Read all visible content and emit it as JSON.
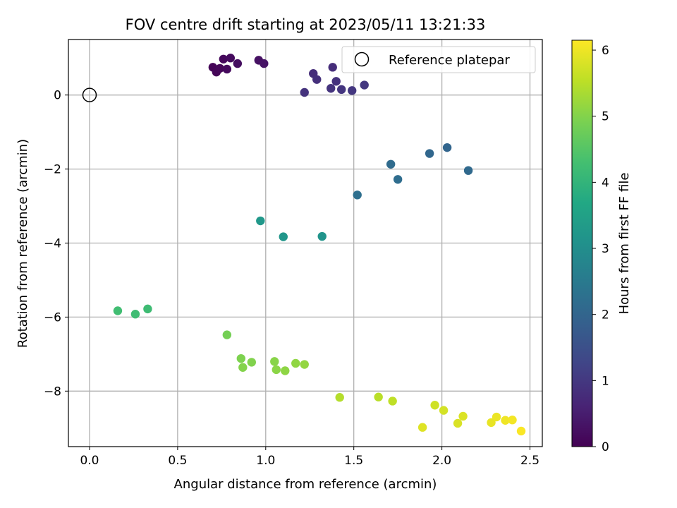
{
  "chart_data": {
    "type": "scatter",
    "title": "FOV centre drift starting at 2023/05/11 13:21:33",
    "xlabel": "Angular distance from reference (arcmin)",
    "ylabel": "Rotation from reference (arcmin)",
    "xlim": [
      -0.12,
      2.57
    ],
    "ylim": [
      -9.5,
      1.5
    ],
    "xticks": [
      0.0,
      0.5,
      1.0,
      1.5,
      2.0,
      2.5
    ],
    "xtick_labels": [
      "0.0",
      "0.5",
      "1.0",
      "1.5",
      "2.0",
      "2.5"
    ],
    "yticks": [
      -8,
      -6,
      -4,
      -2,
      0
    ],
    "ytick_labels": [
      "−8",
      "−6",
      "−4",
      "−2",
      "0"
    ],
    "grid": true,
    "legend": {
      "position": "top-right",
      "entries": [
        "Reference platepar"
      ]
    },
    "reference_point": {
      "x": 0.0,
      "y": 0.0
    },
    "colorbar": {
      "label": "Hours from first FF file",
      "colormap": "viridis",
      "range": [
        0,
        6.15
      ],
      "ticks": [
        0,
        1,
        2,
        3,
        4,
        5,
        6
      ],
      "tick_labels": [
        "0",
        "1",
        "2",
        "3",
        "4",
        "5",
        "6"
      ]
    },
    "points": [
      {
        "x": 0.7,
        "y": 0.75,
        "hours": 0.05
      },
      {
        "x": 0.72,
        "y": 0.62,
        "hours": 0.08
      },
      {
        "x": 0.74,
        "y": 0.72,
        "hours": 0.1
      },
      {
        "x": 0.76,
        "y": 0.97,
        "hours": 0.13
      },
      {
        "x": 0.78,
        "y": 0.7,
        "hours": 0.16
      },
      {
        "x": 0.8,
        "y": 1.0,
        "hours": 0.18
      },
      {
        "x": 0.84,
        "y": 0.85,
        "hours": 0.22
      },
      {
        "x": 0.96,
        "y": 0.94,
        "hours": 0.28
      },
      {
        "x": 0.99,
        "y": 0.85,
        "hours": 0.32
      },
      {
        "x": 1.22,
        "y": 0.07,
        "hours": 0.9
      },
      {
        "x": 1.27,
        "y": 0.58,
        "hours": 0.8
      },
      {
        "x": 1.29,
        "y": 0.42,
        "hours": 0.85
      },
      {
        "x": 1.37,
        "y": 0.18,
        "hours": 0.92
      },
      {
        "x": 1.38,
        "y": 0.75,
        "hours": 0.78
      },
      {
        "x": 1.4,
        "y": 0.37,
        "hours": 0.88
      },
      {
        "x": 1.43,
        "y": 0.15,
        "hours": 0.95
      },
      {
        "x": 1.49,
        "y": 0.12,
        "hours": 0.98
      },
      {
        "x": 1.56,
        "y": 0.27,
        "hours": 1.0
      },
      {
        "x": 1.52,
        "y": -2.7,
        "hours": 2.25
      },
      {
        "x": 1.71,
        "y": -1.87,
        "hours": 2.15
      },
      {
        "x": 1.75,
        "y": -2.28,
        "hours": 2.2
      },
      {
        "x": 1.93,
        "y": -1.58,
        "hours": 2.05
      },
      {
        "x": 2.03,
        "y": -1.42,
        "hours": 2.0
      },
      {
        "x": 2.15,
        "y": -2.04,
        "hours": 2.1
      },
      {
        "x": 0.97,
        "y": -3.4,
        "hours": 3.25
      },
      {
        "x": 1.1,
        "y": -3.83,
        "hours": 3.2
      },
      {
        "x": 1.32,
        "y": -3.82,
        "hours": 3.15
      },
      {
        "x": 0.16,
        "y": -5.83,
        "hours": 4.25
      },
      {
        "x": 0.26,
        "y": -5.92,
        "hours": 4.22
      },
      {
        "x": 0.33,
        "y": -5.78,
        "hours": 4.2
      },
      {
        "x": 0.78,
        "y": -6.48,
        "hours": 4.85
      },
      {
        "x": 0.86,
        "y": -7.12,
        "hours": 4.95
      },
      {
        "x": 0.87,
        "y": -7.36,
        "hours": 5.0
      },
      {
        "x": 0.92,
        "y": -7.22,
        "hours": 4.98
      },
      {
        "x": 1.05,
        "y": -7.2,
        "hours": 5.05
      },
      {
        "x": 1.06,
        "y": -7.42,
        "hours": 5.08
      },
      {
        "x": 1.11,
        "y": -7.45,
        "hours": 5.1
      },
      {
        "x": 1.17,
        "y": -7.25,
        "hours": 5.12
      },
      {
        "x": 1.22,
        "y": -7.28,
        "hours": 5.15
      },
      {
        "x": 1.42,
        "y": -8.17,
        "hours": 5.45
      },
      {
        "x": 1.64,
        "y": -8.16,
        "hours": 5.5
      },
      {
        "x": 1.72,
        "y": -8.27,
        "hours": 5.55
      },
      {
        "x": 1.89,
        "y": -8.98,
        "hours": 5.85
      },
      {
        "x": 1.96,
        "y": -8.38,
        "hours": 5.7
      },
      {
        "x": 2.01,
        "y": -8.52,
        "hours": 5.75
      },
      {
        "x": 2.09,
        "y": -8.87,
        "hours": 5.8
      },
      {
        "x": 2.12,
        "y": -8.68,
        "hours": 5.82
      },
      {
        "x": 2.28,
        "y": -8.85,
        "hours": 5.95
      },
      {
        "x": 2.31,
        "y": -8.7,
        "hours": 5.98
      },
      {
        "x": 2.36,
        "y": -8.79,
        "hours": 6.02
      },
      {
        "x": 2.4,
        "y": -8.78,
        "hours": 6.05
      },
      {
        "x": 2.45,
        "y": -9.08,
        "hours": 6.12
      }
    ]
  }
}
